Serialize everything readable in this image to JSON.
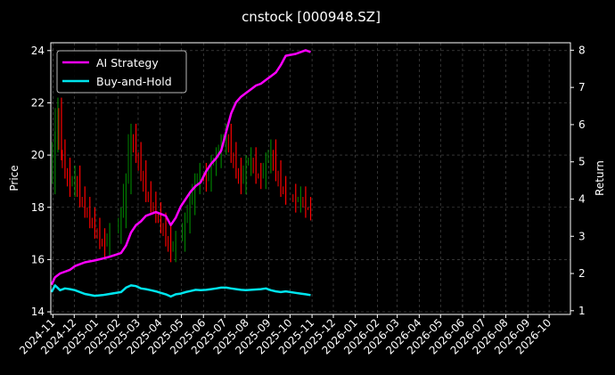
{
  "chart_data": {
    "type": "line",
    "title": "cnstock [000948.SZ]",
    "ylabel_left": "Price",
    "ylabel_right": "Return",
    "ylim_left": [
      13.9,
      24.3
    ],
    "ylim_right": [
      0.9,
      8.2
    ],
    "xlim": [
      "2024-10-29",
      "2026-10-31"
    ],
    "grid": true,
    "legend_position": "top-left",
    "left_ticks": [
      "14",
      "16",
      "18",
      "20",
      "22",
      "24"
    ],
    "right_ticks": [
      "1",
      "2",
      "3",
      "4",
      "5",
      "6",
      "7",
      "8"
    ],
    "x_ticks": [
      "2024-11",
      "2024-12",
      "2025-01",
      "2025-02",
      "2025-03",
      "2025-04",
      "2025-05",
      "2025-06",
      "2025-07",
      "2025-08",
      "2025-09",
      "2025-10",
      "2025-11",
      "2025-12",
      "2026-01",
      "2026-02",
      "2026-03",
      "2026-04",
      "2026-05",
      "2026-06",
      "2026-07",
      "2026-08",
      "2026-09",
      "2026-10"
    ],
    "colors": {
      "up": "#008000",
      "down": "#ff0000",
      "ai": "#ff00ff",
      "bh": "#00e5ee",
      "grid": "#555555"
    },
    "price_series": {
      "name": "Price",
      "x": [
        "2024-10-30",
        "2024-11-04",
        "2024-11-08",
        "2024-11-13",
        "2024-11-18",
        "2024-11-25",
        "2024-12-02",
        "2024-12-09",
        "2024-12-16",
        "2024-12-23",
        "2024-12-30",
        "2025-01-06",
        "2025-01-13",
        "2025-01-20",
        "2025-02-05",
        "2025-02-12",
        "2025-02-19",
        "2025-02-26",
        "2025-03-05",
        "2025-03-12",
        "2025-03-19",
        "2025-03-26",
        "2025-04-02",
        "2025-04-09",
        "2025-04-16",
        "2025-04-23",
        "2025-05-06",
        "2025-05-13",
        "2025-05-20",
        "2025-05-27",
        "2025-06-05",
        "2025-06-12",
        "2025-06-19",
        "2025-06-26",
        "2025-07-03",
        "2025-07-10",
        "2025-07-17",
        "2025-07-24",
        "2025-07-31",
        "2025-08-07",
        "2025-08-14",
        "2025-08-21",
        "2025-08-28",
        "2025-09-04",
        "2025-09-11",
        "2025-09-18",
        "2025-09-25",
        "2025-10-09",
        "2025-10-16",
        "2025-10-23",
        "2025-10-30"
      ],
      "values": [
        18.9,
        20.5,
        21.8,
        20.2,
        19.5,
        18.8,
        19.2,
        18.4,
        18.0,
        17.6,
        17.2,
        16.8,
        16.5,
        17.0,
        17.6,
        18.9,
        20.8,
        20.1,
        19.4,
        18.6,
        18.2,
        17.8,
        17.4,
        16.9,
        16.3,
        16.7,
        17.4,
        18.1,
        18.9,
        19.3,
        19.0,
        19.6,
        19.9,
        20.4,
        20.8,
        20.1,
        19.5,
        18.9,
        19.6,
        19.9,
        19.3,
        19.1,
        19.7,
        20.2,
        19.4,
        18.8,
        18.5,
        18.2,
        18.4,
        18.0,
        17.9
      ]
    },
    "series": [
      {
        "name": "AI Strategy",
        "x": [
          "2024-10-30",
          "2024-11-04",
          "2024-11-11",
          "2024-11-18",
          "2024-11-25",
          "2024-12-02",
          "2024-12-16",
          "2024-12-30",
          "2025-01-10",
          "2025-01-20",
          "2025-02-05",
          "2025-02-12",
          "2025-02-19",
          "2025-02-26",
          "2025-03-05",
          "2025-03-12",
          "2025-03-19",
          "2025-03-26",
          "2025-04-02",
          "2025-04-09",
          "2025-04-16",
          "2025-04-23",
          "2025-04-30",
          "2025-05-07",
          "2025-05-14",
          "2025-05-21",
          "2025-05-28",
          "2025-06-05",
          "2025-06-12",
          "2025-06-19",
          "2025-06-26",
          "2025-07-03",
          "2025-07-10",
          "2025-07-17",
          "2025-07-24",
          "2025-07-31",
          "2025-08-07",
          "2025-08-14",
          "2025-08-21",
          "2025-08-28",
          "2025-09-04",
          "2025-09-11",
          "2025-09-18",
          "2025-09-25",
          "2025-10-09",
          "2025-10-16",
          "2025-10-23",
          "2025-10-30"
        ],
        "values": [
          1.7,
          1.9,
          2.0,
          2.05,
          2.1,
          2.2,
          2.3,
          2.35,
          2.4,
          2.45,
          2.55,
          2.75,
          3.1,
          3.3,
          3.4,
          3.55,
          3.6,
          3.65,
          3.6,
          3.55,
          3.3,
          3.5,
          3.8,
          4.0,
          4.2,
          4.35,
          4.45,
          4.75,
          4.95,
          5.1,
          5.3,
          5.8,
          6.3,
          6.6,
          6.75,
          6.85,
          6.95,
          7.05,
          7.1,
          7.2,
          7.3,
          7.4,
          7.6,
          7.85,
          7.9,
          7.95,
          8.0,
          7.95
        ]
      },
      {
        "name": "Buy-and-Hold",
        "x": [
          "2024-10-30",
          "2024-11-04",
          "2024-11-11",
          "2024-11-18",
          "2024-11-25",
          "2024-12-02",
          "2024-12-16",
          "2024-12-30",
          "2025-01-10",
          "2025-01-20",
          "2025-02-05",
          "2025-02-12",
          "2025-02-19",
          "2025-02-26",
          "2025-03-05",
          "2025-03-12",
          "2025-03-19",
          "2025-03-26",
          "2025-04-02",
          "2025-04-09",
          "2025-04-16",
          "2025-04-23",
          "2025-04-30",
          "2025-05-07",
          "2025-05-14",
          "2025-05-21",
          "2025-05-28",
          "2025-06-05",
          "2025-06-12",
          "2025-06-19",
          "2025-06-26",
          "2025-07-03",
          "2025-07-10",
          "2025-07-17",
          "2025-07-24",
          "2025-07-31",
          "2025-08-07",
          "2025-08-14",
          "2025-08-21",
          "2025-08-28",
          "2025-09-04",
          "2025-09-11",
          "2025-09-18",
          "2025-09-25",
          "2025-10-09",
          "2025-10-16",
          "2025-10-23",
          "2025-10-30"
        ],
        "values": [
          1.5,
          1.68,
          1.55,
          1.6,
          1.58,
          1.55,
          1.45,
          1.4,
          1.42,
          1.45,
          1.5,
          1.62,
          1.68,
          1.66,
          1.6,
          1.58,
          1.55,
          1.52,
          1.48,
          1.44,
          1.38,
          1.44,
          1.46,
          1.5,
          1.53,
          1.56,
          1.55,
          1.56,
          1.58,
          1.6,
          1.62,
          1.62,
          1.6,
          1.58,
          1.56,
          1.55,
          1.56,
          1.57,
          1.58,
          1.6,
          1.55,
          1.52,
          1.5,
          1.52,
          1.48,
          1.46,
          1.44,
          1.42
        ]
      }
    ]
  }
}
